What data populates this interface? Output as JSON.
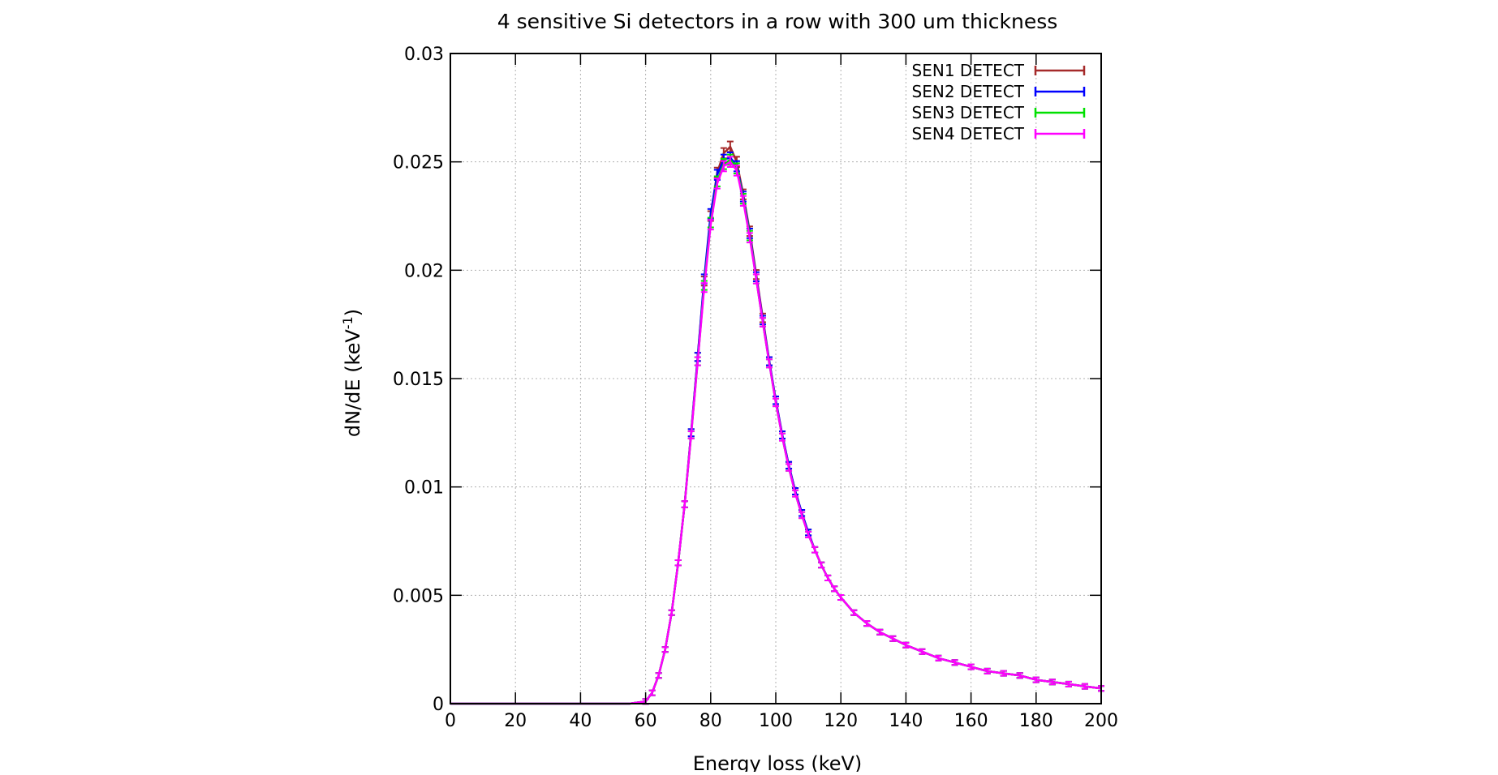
{
  "chart_data": {
    "type": "line",
    "title": "4 sensitive Si detectors in a row with 300 um thickness",
    "xlabel": "Energy loss (keV)",
    "ylabel": "dN/dE (keV",
    "ylabel_sup": "-1",
    "ylabel_close": ")",
    "xlim": [
      0,
      200
    ],
    "ylim": [
      0,
      0.03
    ],
    "xticks": [
      "0",
      "20",
      "40",
      "60",
      "80",
      "100",
      "120",
      "140",
      "160",
      "180",
      "200"
    ],
    "yticks": [
      "0",
      "0.005",
      "0.01",
      "0.015",
      "0.02",
      "0.025",
      "0.03"
    ],
    "grid": true,
    "legend_position": "top-right",
    "error_bars": true,
    "x": [
      0,
      20,
      40,
      55,
      60,
      62,
      64,
      66,
      68,
      70,
      72,
      74,
      76,
      78,
      80,
      82,
      84,
      86,
      88,
      90,
      92,
      94,
      96,
      98,
      100,
      102,
      104,
      106,
      108,
      110,
      112,
      114,
      116,
      118,
      120,
      124,
      128,
      132,
      136,
      140,
      145,
      150,
      155,
      160,
      165,
      170,
      175,
      180,
      185,
      190,
      195,
      200
    ],
    "series": [
      {
        "name": "SEN1 DETECT",
        "color": "#a52a2a",
        "values": [
          0,
          0,
          0,
          0,
          0.0001,
          0.0005,
          0.0013,
          0.0025,
          0.0042,
          0.0065,
          0.0092,
          0.0125,
          0.016,
          0.0195,
          0.0225,
          0.0245,
          0.0254,
          0.0257,
          0.025,
          0.0235,
          0.0218,
          0.0198,
          0.0178,
          0.0158,
          0.014,
          0.0124,
          0.011,
          0.0098,
          0.0088,
          0.0079,
          0.0071,
          0.0064,
          0.0058,
          0.0053,
          0.0049,
          0.0042,
          0.0037,
          0.0033,
          0.003,
          0.0027,
          0.0024,
          0.0021,
          0.0019,
          0.0017,
          0.0015,
          0.0014,
          0.0013,
          0.0011,
          0.001,
          0.0009,
          0.0008,
          0.0007
        ]
      },
      {
        "name": "SEN2 DETECT",
        "color": "#0000ff",
        "values": [
          0,
          0,
          0,
          0,
          0.0001,
          0.0005,
          0.0013,
          0.0025,
          0.0042,
          0.0065,
          0.0092,
          0.0125,
          0.016,
          0.0196,
          0.0226,
          0.0244,
          0.0251,
          0.0252,
          0.0248,
          0.0234,
          0.0217,
          0.0197,
          0.0177,
          0.0158,
          0.014,
          0.0124,
          0.011,
          0.0098,
          0.0088,
          0.0079,
          0.0071,
          0.0064,
          0.0058,
          0.0053,
          0.0049,
          0.0042,
          0.0037,
          0.0033,
          0.003,
          0.0027,
          0.0024,
          0.0021,
          0.0019,
          0.0017,
          0.0015,
          0.0014,
          0.0013,
          0.0011,
          0.001,
          0.0009,
          0.0008,
          0.0007
        ]
      },
      {
        "name": "SEN3 DETECT",
        "color": "#00e000",
        "values": [
          0,
          0,
          0,
          0,
          0.0001,
          0.0005,
          0.0013,
          0.0025,
          0.0042,
          0.0065,
          0.0092,
          0.0124,
          0.0158,
          0.0193,
          0.0222,
          0.0241,
          0.0249,
          0.0251,
          0.0247,
          0.0233,
          0.0216,
          0.0196,
          0.0176,
          0.0157,
          0.0139,
          0.0123,
          0.0109,
          0.0097,
          0.0087,
          0.0078,
          0.0071,
          0.0064,
          0.0058,
          0.0053,
          0.0049,
          0.0042,
          0.0037,
          0.0033,
          0.003,
          0.0027,
          0.0024,
          0.0021,
          0.0019,
          0.0017,
          0.0015,
          0.0014,
          0.0013,
          0.0011,
          0.001,
          0.0009,
          0.0008,
          0.0007
        ]
      },
      {
        "name": "SEN4 DETECT",
        "color": "#ff00ff",
        "values": [
          0,
          0,
          0,
          0,
          0.0001,
          0.0005,
          0.0013,
          0.0025,
          0.0042,
          0.0065,
          0.0092,
          0.0124,
          0.0158,
          0.0192,
          0.0221,
          0.024,
          0.0248,
          0.025,
          0.0246,
          0.0232,
          0.0215,
          0.0196,
          0.0176,
          0.0157,
          0.0139,
          0.0123,
          0.0109,
          0.0097,
          0.0087,
          0.0078,
          0.0071,
          0.0064,
          0.0058,
          0.0053,
          0.0049,
          0.0042,
          0.0037,
          0.0033,
          0.003,
          0.0027,
          0.0024,
          0.0021,
          0.0019,
          0.0017,
          0.0015,
          0.0014,
          0.0013,
          0.0011,
          0.001,
          0.0009,
          0.0008,
          0.0007
        ]
      }
    ]
  }
}
